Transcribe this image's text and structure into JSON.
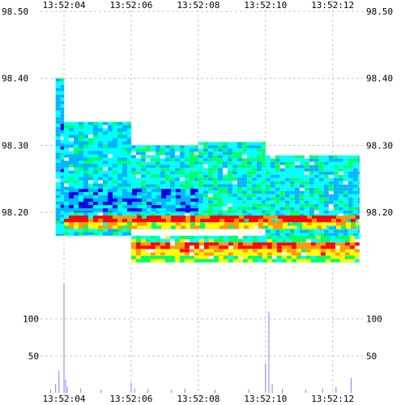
{
  "chart_data": {
    "type": "heatmap",
    "title": "",
    "xlabel": "",
    "ylabel": "",
    "x_ticks": [
      "13:52:04",
      "13:52:06",
      "13:52:08",
      "13:52:10",
      "13:52:12"
    ],
    "x_tick_seconds": [
      4,
      6,
      8,
      10,
      12
    ],
    "xlim_seconds": [
      3.3,
      12.9
    ],
    "price_panel": {
      "y_ticks": [
        "98.50",
        "98.40",
        "98.30",
        "98.20"
      ],
      "y_tick_values": [
        98.5,
        98.4,
        98.3,
        98.2
      ],
      "ylim": [
        98.13,
        98.5
      ],
      "heat_bands": [
        {
          "from": 3.75,
          "to": 4.0,
          "price_lo": 98.165,
          "price_hi": 98.4,
          "level": 0.25
        },
        {
          "from": 4.0,
          "to": 6.0,
          "price_lo": 98.165,
          "price_hi": 98.335,
          "level": 0.3
        },
        {
          "from": 6.0,
          "to": 8.0,
          "price_lo": 98.175,
          "price_hi": 98.3,
          "level": 0.35
        },
        {
          "from": 8.0,
          "to": 10.0,
          "price_lo": 98.18,
          "price_hi": 98.305,
          "level": 0.35
        },
        {
          "from": 10.0,
          "to": 12.8,
          "price_lo": 98.16,
          "price_hi": 98.285,
          "level": 0.3
        },
        {
          "from": 4.0,
          "to": 8.0,
          "price_lo": 98.2,
          "price_hi": 98.235,
          "level": 0.15
        },
        {
          "from": 4.0,
          "to": 12.8,
          "price_lo": 98.185,
          "price_hi": 98.195,
          "level": 1.0
        },
        {
          "from": 4.0,
          "to": 12.8,
          "price_lo": 98.175,
          "price_hi": 98.185,
          "level": 0.7
        },
        {
          "from": 6.0,
          "to": 12.8,
          "price_lo": 98.155,
          "price_hi": 98.165,
          "level": 0.45
        },
        {
          "from": 6.0,
          "to": 12.8,
          "price_lo": 98.145,
          "price_hi": 98.155,
          "level": 0.95
        },
        {
          "from": 6.0,
          "to": 12.8,
          "price_lo": 98.135,
          "price_hi": 98.145,
          "level": 0.75
        },
        {
          "from": 6.0,
          "to": 12.8,
          "price_lo": 98.125,
          "price_hi": 98.135,
          "level": 0.55
        }
      ],
      "color_scale": [
        "#0000e6",
        "#00b4ff",
        "#00ffff",
        "#00ff66",
        "#ffff00",
        "#ff9900",
        "#ff0000"
      ]
    },
    "volume_panel": {
      "y_ticks": [
        "100",
        "50"
      ],
      "y_tick_values": [
        100,
        50
      ],
      "ylim": [
        0,
        115
      ],
      "spikes": [
        {
          "t": 3.6,
          "v": 5
        },
        {
          "t": 3.75,
          "v": 12
        },
        {
          "t": 3.85,
          "v": 30
        },
        {
          "t": 4.0,
          "v": 155
        },
        {
          "t": 4.05,
          "v": 18
        },
        {
          "t": 4.1,
          "v": 8
        },
        {
          "t": 4.5,
          "v": 6
        },
        {
          "t": 5.1,
          "v": 4
        },
        {
          "t": 6.0,
          "v": 14
        },
        {
          "t": 6.1,
          "v": 6
        },
        {
          "t": 6.5,
          "v": 5
        },
        {
          "t": 7.2,
          "v": 4
        },
        {
          "t": 7.6,
          "v": 6
        },
        {
          "t": 8.5,
          "v": 4
        },
        {
          "t": 9.5,
          "v": 5
        },
        {
          "t": 10.0,
          "v": 40
        },
        {
          "t": 10.1,
          "v": 110
        },
        {
          "t": 10.2,
          "v": 12
        },
        {
          "t": 10.5,
          "v": 5
        },
        {
          "t": 11.2,
          "v": 4
        },
        {
          "t": 11.7,
          "v": 6
        },
        {
          "t": 12.1,
          "v": 8
        },
        {
          "t": 12.55,
          "v": 20
        }
      ]
    },
    "grid": true
  }
}
